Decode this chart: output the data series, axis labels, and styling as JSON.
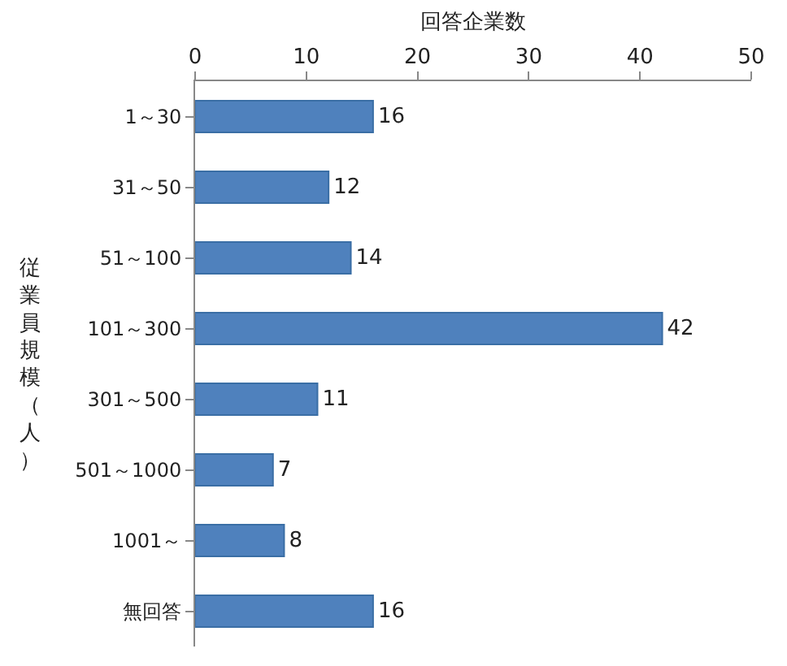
{
  "chart_data": {
    "type": "bar",
    "orientation": "horizontal",
    "xlabel": "回答企業数",
    "ylabel": "従業員規模（人）",
    "categories": [
      "1～30",
      "31～50",
      "51～100",
      "101～300",
      "301～500",
      "501～1000",
      "1001～",
      "無回答"
    ],
    "values": [
      16,
      12,
      14,
      42,
      11,
      7,
      8,
      16
    ],
    "color": "#4f81bd",
    "xlim": [
      0,
      50
    ],
    "xticks": [
      0,
      10,
      20,
      30,
      40,
      50
    ],
    "data_labels": true
  }
}
